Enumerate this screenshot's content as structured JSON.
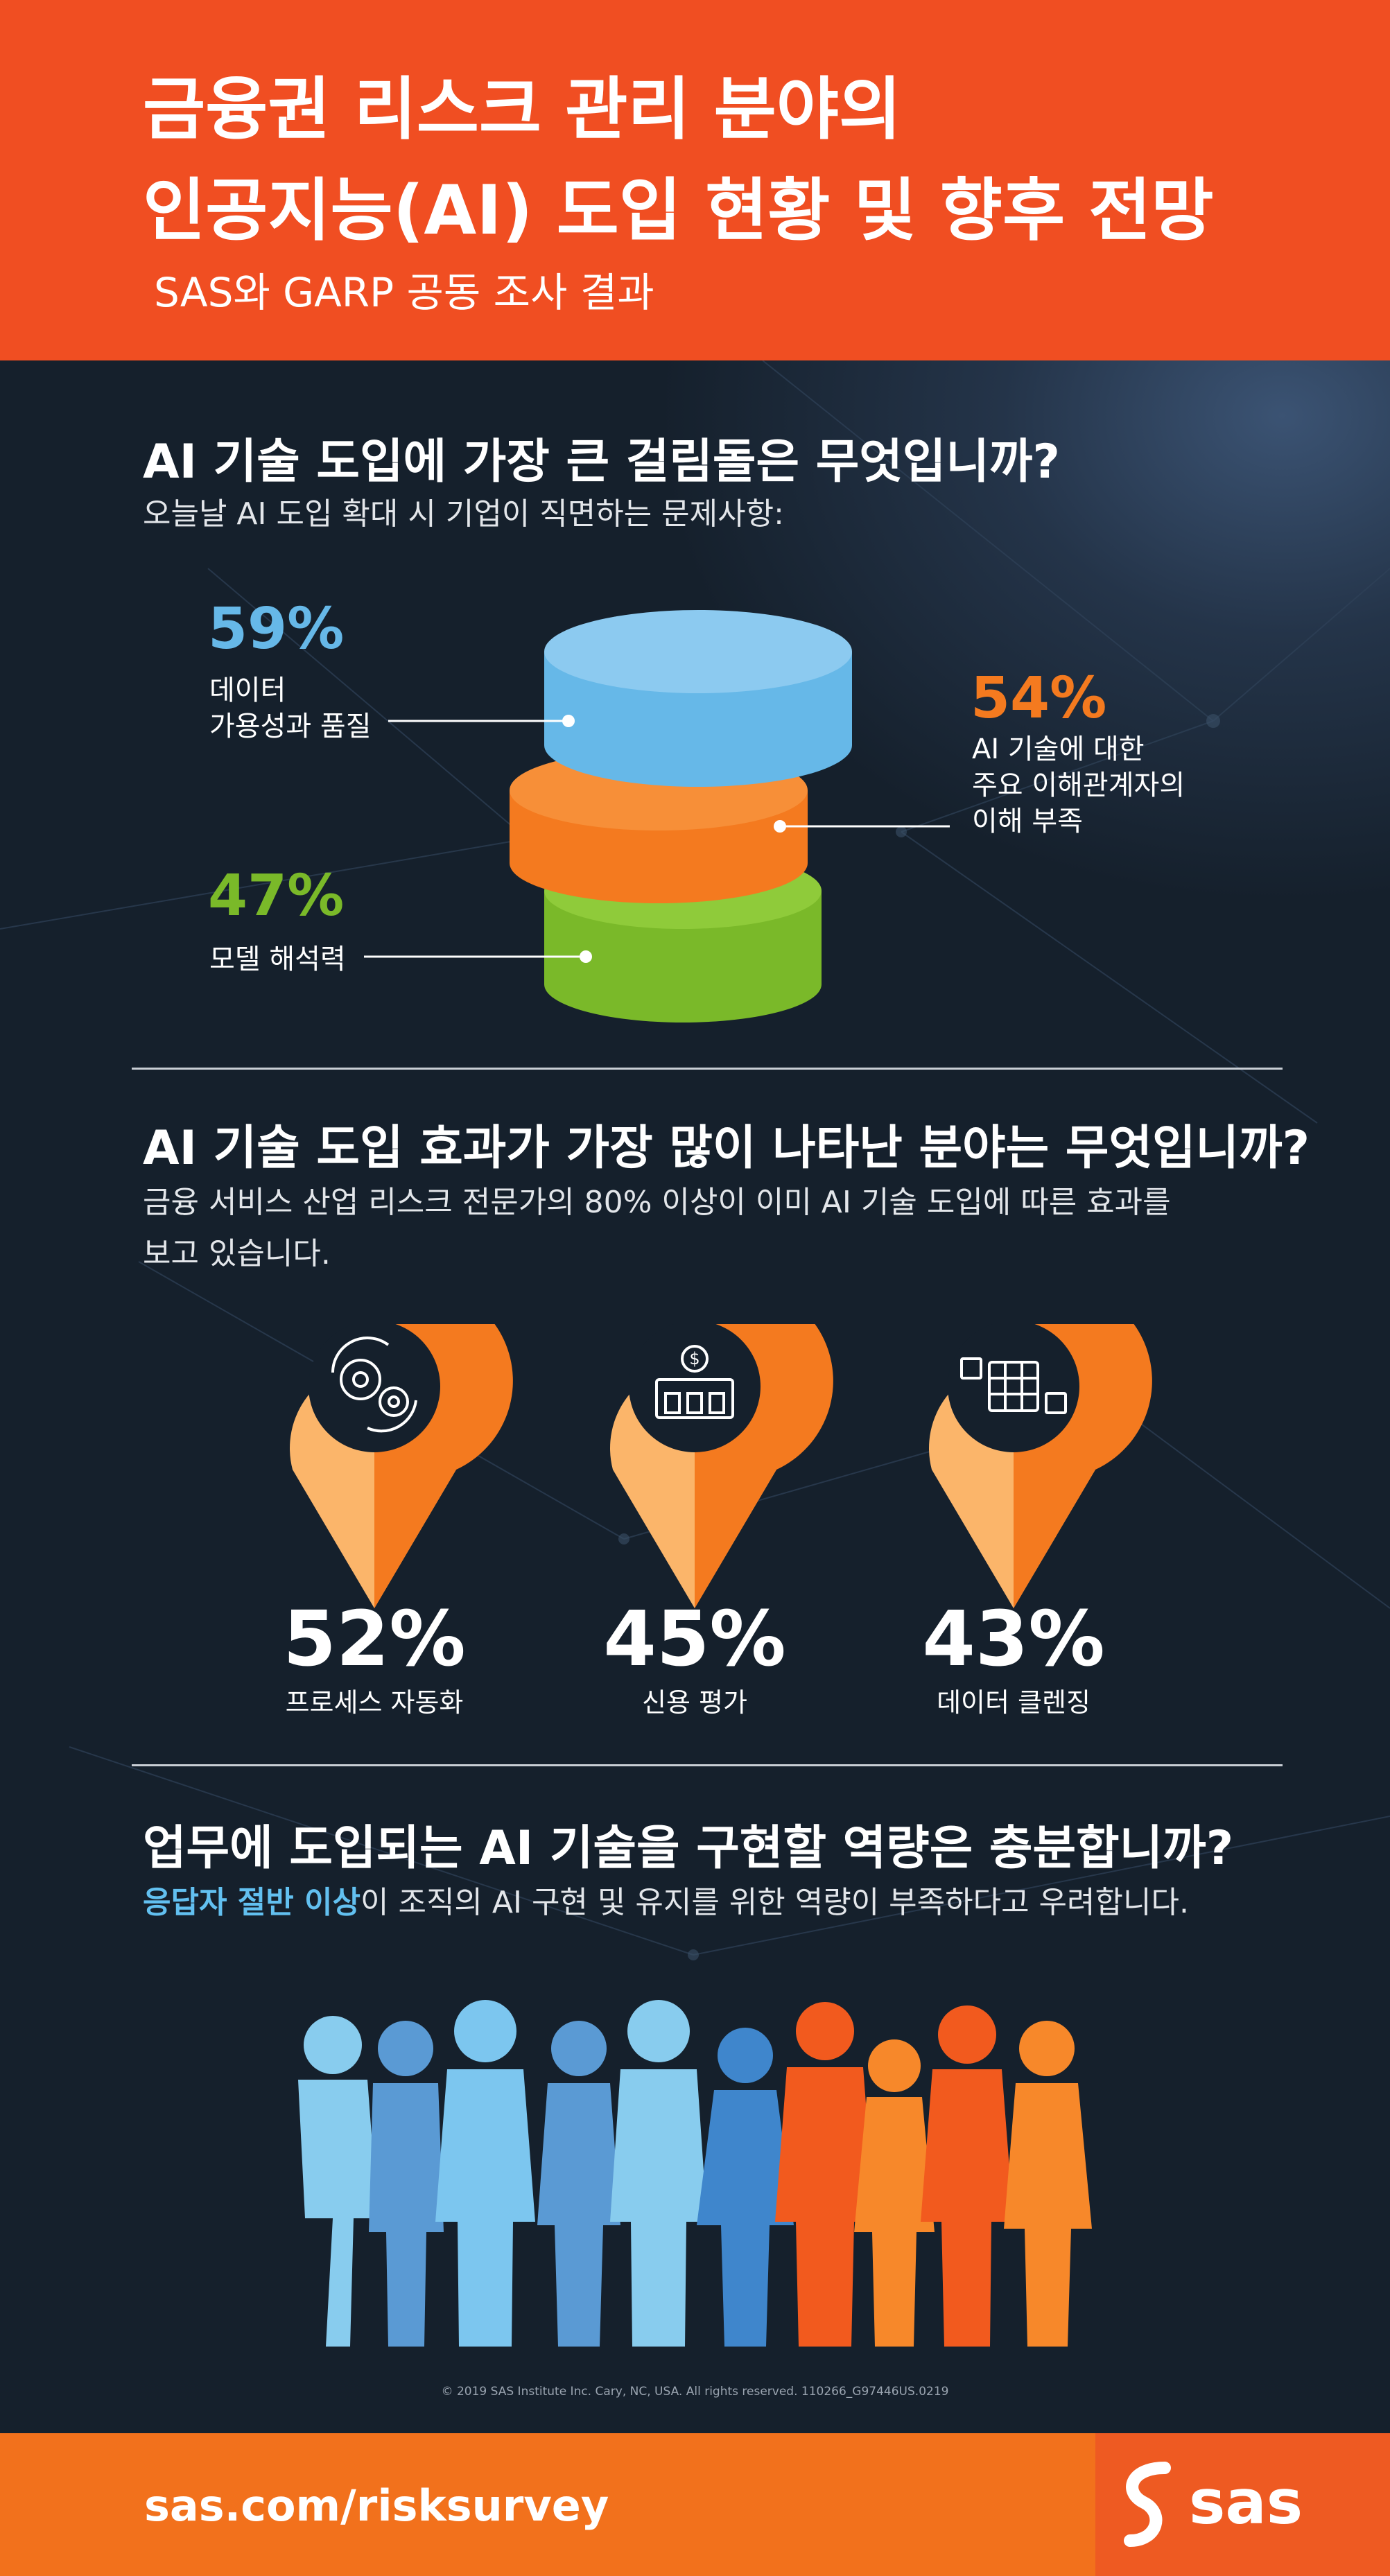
{
  "header": {
    "title_line1": "금융권 리스크 관리 분야의",
    "title_line2": "인공지능(AI) 도입 현황 및 향후 전망",
    "subtitle": "SAS와 GARP 공동 조사 결과"
  },
  "section1": {
    "title": "AI 기술 도입에 가장 큰 걸림돌은 무엇입니까?",
    "desc": "오늘날 AI 도입 확대 시 기업이 직면하는 문제사항:",
    "items": [
      {
        "pct": "59%",
        "label_line1": "데이터",
        "label_line2": "가용성과 품질",
        "color": "#66b8e8"
      },
      {
        "pct": "54%",
        "label_line1": "AI 기술에 대한",
        "label_line2": "주요 이해관계자의",
        "label_line3": "이해 부족",
        "color": "#f47a1f"
      },
      {
        "pct": "47%",
        "label_line1": "모델 해석력",
        "color": "#7ab929"
      }
    ]
  },
  "section2": {
    "title": "AI 기술 도입 효과가 가장 많이 나타난 분야는 무엇입니까?",
    "desc_line1": "금융 서비스 산업 리스크 전문가의 80% 이상이 이미 AI 기술 도입에 따른 효과를",
    "desc_line2": "보고 있습니다.",
    "items": [
      {
        "pct": "52%",
        "label": "프로세스 자동화",
        "icon": "gears-icon"
      },
      {
        "pct": "45%",
        "label": "신용 평가",
        "icon": "bank-icon"
      },
      {
        "pct": "43%",
        "label": "데이터 클렌징",
        "icon": "spreadsheet-icon"
      }
    ]
  },
  "section3": {
    "title": "업무에 도입되는 AI 기술을 구현할 역량은 충분합니까?",
    "desc_highlight": "응답자 절반 이상",
    "desc_rest": "이 조직의 AI 구현 및 유지를 위한 역량이 부족하다고 우려합니다.",
    "highlight_color": "#62c0f0"
  },
  "copyright": "© 2019 SAS Institute Inc. Cary, NC, USA. All rights reserved. 110266_G97446US.0219",
  "footer": {
    "url": "sas.com/risksurvey",
    "logo": "sas"
  }
}
